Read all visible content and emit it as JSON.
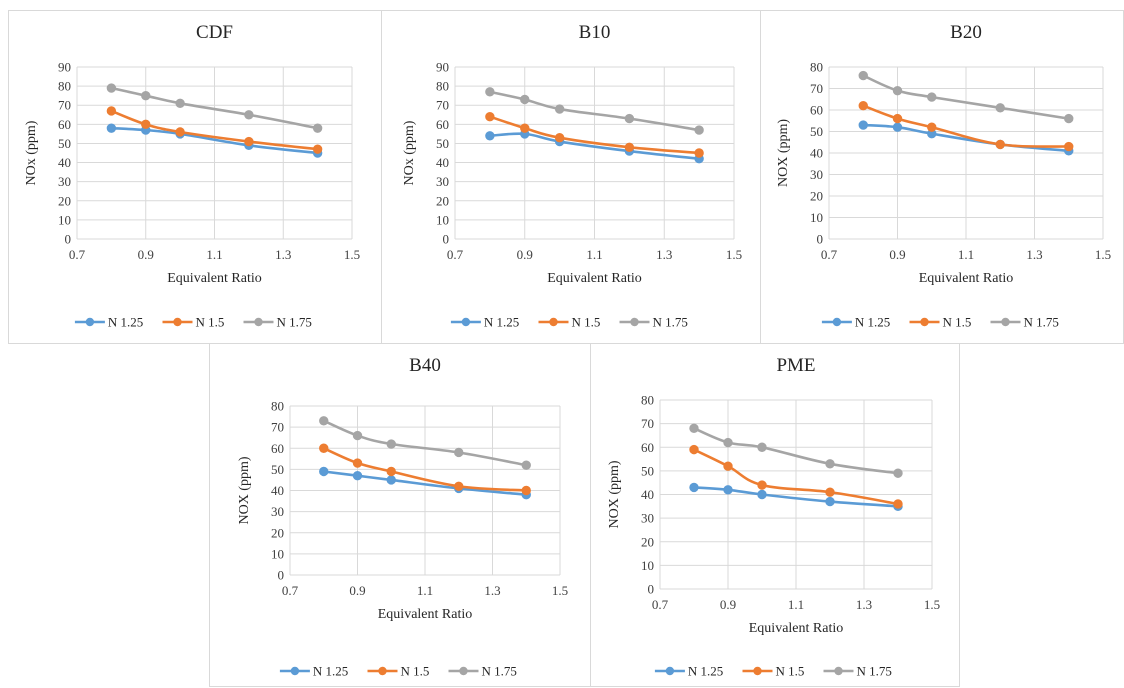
{
  "legend_markers": {
    "N 1.25": "circle",
    "N 1.5": "circle",
    "N 1.75": "circle"
  },
  "colors": {
    "N 1.25": "#5b9bd5",
    "N 1.5": "#ed7d31",
    "N 1.75": "#a5a5a5",
    "grid": "#d9d9d9"
  },
  "chart_data": [
    {
      "type": "line",
      "title": "CDF",
      "xlabel": "Equivalent Ratio",
      "ylabel": "NOx (ppm)",
      "xlim": [
        0.7,
        1.5
      ],
      "ylim": [
        0,
        90
      ],
      "xticks": [
        "0.7",
        "0.9",
        "1.1",
        "1.3",
        "1.5"
      ],
      "yticks": [
        "0",
        "10",
        "20",
        "30",
        "40",
        "50",
        "60",
        "70",
        "80",
        "90"
      ],
      "x": [
        0.8,
        0.9,
        1.0,
        1.2,
        1.4
      ],
      "series": [
        {
          "name": "N 1.25",
          "values": [
            58,
            57,
            55,
            49,
            45
          ]
        },
        {
          "name": "N 1.5",
          "values": [
            67,
            60,
            56,
            51,
            47
          ]
        },
        {
          "name": "N 1.75",
          "values": [
            79,
            75,
            71,
            65,
            58
          ]
        }
      ],
      "grid": true,
      "legend": "bottom"
    },
    {
      "type": "line",
      "title": "B10",
      "xlabel": "Equivalent Ratio",
      "ylabel": "NOx (ppm)",
      "xlim": [
        0.7,
        1.5
      ],
      "ylim": [
        0,
        90
      ],
      "xticks": [
        "0.7",
        "0.9",
        "1.1",
        "1.3",
        "1.5"
      ],
      "yticks": [
        "0",
        "10",
        "20",
        "30",
        "40",
        "50",
        "60",
        "70",
        "80",
        "90"
      ],
      "x": [
        0.8,
        0.9,
        1.0,
        1.2,
        1.4
      ],
      "series": [
        {
          "name": "N 1.25",
          "values": [
            54,
            55,
            51,
            46,
            42
          ]
        },
        {
          "name": "N 1.5",
          "values": [
            64,
            58,
            53,
            48,
            45
          ]
        },
        {
          "name": "N 1.75",
          "values": [
            77,
            73,
            68,
            63,
            57
          ]
        }
      ],
      "grid": true,
      "legend": "bottom"
    },
    {
      "type": "line",
      "title": "B20",
      "xlabel": "Equivalent Ratio",
      "ylabel": "NOX (ppm)",
      "xlim": [
        0.7,
        1.5
      ],
      "ylim": [
        0,
        80
      ],
      "xticks": [
        "0.7",
        "0.9",
        "1.1",
        "1.3",
        "1.5"
      ],
      "yticks": [
        "0",
        "10",
        "20",
        "30",
        "40",
        "50",
        "60",
        "70",
        "80"
      ],
      "x": [
        0.8,
        0.9,
        1.0,
        1.2,
        1.4
      ],
      "series": [
        {
          "name": "N 1.25",
          "values": [
            53,
            52,
            49,
            44,
            41
          ]
        },
        {
          "name": "N 1.5",
          "values": [
            62,
            56,
            52,
            44,
            43
          ]
        },
        {
          "name": "N 1.75",
          "values": [
            76,
            69,
            66,
            61,
            56
          ]
        }
      ],
      "grid": true,
      "legend": "bottom"
    },
    {
      "type": "line",
      "title": "B40",
      "xlabel": "Equivalent Ratio",
      "ylabel": "NOX (ppm)",
      "xlim": [
        0.7,
        1.5
      ],
      "ylim": [
        0,
        80
      ],
      "xticks": [
        "0.7",
        "0.9",
        "1.1",
        "1.3",
        "1.5"
      ],
      "yticks": [
        "0",
        "10",
        "20",
        "30",
        "40",
        "50",
        "60",
        "70",
        "80"
      ],
      "x": [
        0.8,
        0.9,
        1.0,
        1.2,
        1.4
      ],
      "series": [
        {
          "name": "N 1.25",
          "values": [
            49,
            47,
            45,
            41,
            38
          ]
        },
        {
          "name": "N 1.5",
          "values": [
            60,
            53,
            49,
            42,
            40
          ]
        },
        {
          "name": "N 1.75",
          "values": [
            73,
            66,
            62,
            58,
            52
          ]
        }
      ],
      "grid": true,
      "legend": "bottom"
    },
    {
      "type": "line",
      "title": "PME",
      "xlabel": "Equivalent Ratio",
      "ylabel": "NOX (ppm)",
      "xlim": [
        0.7,
        1.5
      ],
      "ylim": [
        0,
        80
      ],
      "xticks": [
        "0.7",
        "0.9",
        "1.1",
        "1.3",
        "1.5"
      ],
      "yticks": [
        "0",
        "10",
        "20",
        "30",
        "40",
        "50",
        "60",
        "70",
        "80"
      ],
      "x": [
        0.8,
        0.9,
        1.0,
        1.2,
        1.4
      ],
      "series": [
        {
          "name": "N 1.25",
          "values": [
            43,
            42,
            40,
            37,
            35
          ]
        },
        {
          "name": "N 1.5",
          "values": [
            59,
            52,
            44,
            41,
            36
          ]
        },
        {
          "name": "N 1.75",
          "values": [
            68,
            62,
            60,
            53,
            49
          ]
        }
      ],
      "grid": true,
      "legend": "bottom"
    }
  ]
}
